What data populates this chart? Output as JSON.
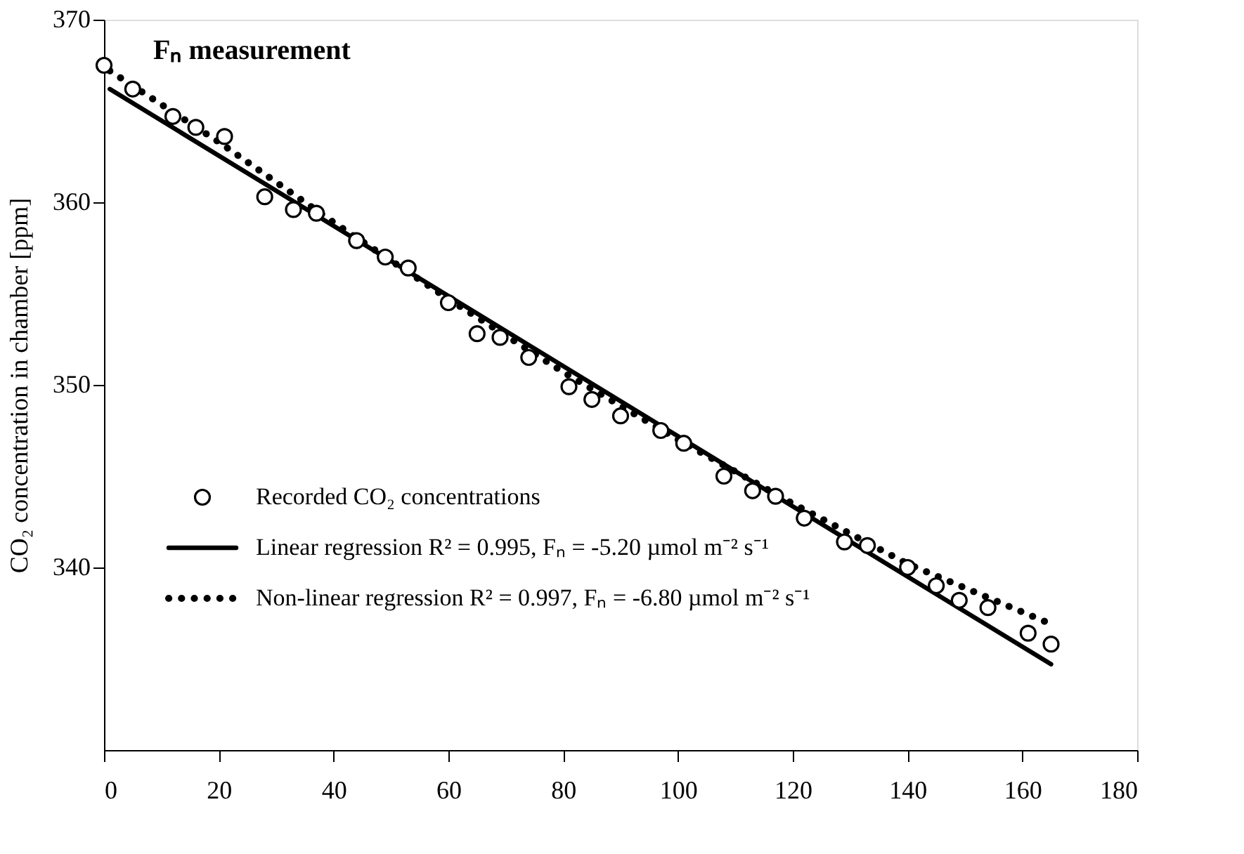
{
  "chart_data": {
    "type": "scatter",
    "title": "Fₙ measurement",
    "ylabel": "CO₂ concentration in chamber [ppm]",
    "xlim": [
      0,
      180
    ],
    "xticks": [
      0,
      20,
      40,
      60,
      80,
      100,
      120,
      140,
      160,
      180
    ],
    "ylim": [
      330,
      370
    ],
    "yticks": [
      340,
      350,
      360,
      370
    ],
    "grid": false,
    "legend": "bottom left",
    "series": [
      {
        "name": "Recorded CO₂ concentrations",
        "marker": "circle",
        "color": "#000000",
        "x": [
          0,
          5,
          12,
          16,
          21,
          28,
          33,
          37,
          44,
          49,
          53,
          60,
          65,
          69,
          74,
          81,
          85,
          90,
          97,
          101,
          108,
          113,
          117,
          122,
          129,
          133,
          140,
          145,
          149,
          154,
          161,
          165
        ],
        "values": [
          367.5,
          366.2,
          364.7,
          364.1,
          363.6,
          360.3,
          359.6,
          359.4,
          357.9,
          357.0,
          356.4,
          354.5,
          352.8,
          352.6,
          351.5,
          349.9,
          349.2,
          348.3,
          347.5,
          346.8,
          345.0,
          344.2,
          343.9,
          342.7,
          341.4,
          341.2,
          340.0,
          339.0,
          338.2,
          337.8,
          336.4,
          335.8
        ]
      },
      {
        "name": "Linear regression R² = 0.995, Fₙ = -5.20 µmol m⁻² s⁻¹",
        "type": "line",
        "line_style": "solid",
        "color": "#000000",
        "x": [
          1,
          165
        ],
        "values": [
          366.2,
          334.7
        ]
      },
      {
        "name": "Non-linear regression R² = 0.997, Fₙ = -6.80 µmol m⁻² s⁻¹",
        "type": "line",
        "line_style": "dotted",
        "color": "#000000",
        "x": [
          1,
          20,
          40,
          60,
          80,
          100,
          120,
          140,
          165
        ],
        "values": [
          367.2,
          363.3,
          358.9,
          354.7,
          350.7,
          347.0,
          343.5,
          340.2,
          336.9
        ]
      }
    ]
  }
}
